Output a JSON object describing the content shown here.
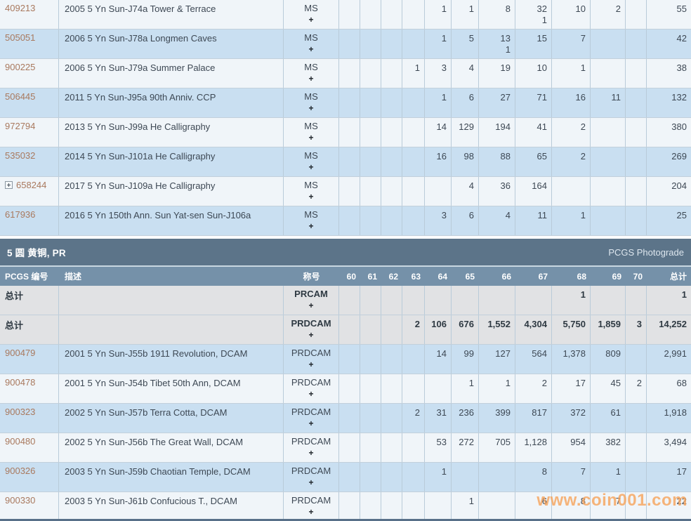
{
  "table": {
    "headers": {
      "pcgs": "PCGS 编号",
      "desc": "描述",
      "desig": "称号",
      "grades": [
        "60",
        "61",
        "62",
        "63",
        "64",
        "65",
        "66",
        "67",
        "68",
        "69",
        "70"
      ],
      "total": "总计"
    },
    "section_ms": {
      "rows": [
        {
          "pcgs": "409213",
          "desc": "2005 5 Yn Sun-J74a Tower & Terrace",
          "desig": "MS",
          "desig2": "+",
          "bg": "white",
          "v": {
            "64": "1",
            "65": "1",
            "66": "8",
            "67": "32",
            "68": "10",
            "69": "2"
          },
          "p": {
            "67": "1"
          },
          "total": "55"
        },
        {
          "pcgs": "505051",
          "desc": "2006 5 Yn Sun-J78a Longmen Caves",
          "desig": "MS",
          "desig2": "+",
          "bg": "blue",
          "v": {
            "64": "1",
            "65": "5",
            "66": "13",
            "67": "15",
            "68": "7"
          },
          "p": {
            "66": "1"
          },
          "total": "42"
        },
        {
          "pcgs": "900225",
          "desc": "2006 5 Yn Sun-J79a Summer Palace",
          "desig": "MS",
          "desig2": "+",
          "bg": "white",
          "v": {
            "63": "1",
            "64": "3",
            "65": "4",
            "66": "19",
            "67": "10",
            "68": "1"
          },
          "p": {},
          "total": "38"
        },
        {
          "pcgs": "506445",
          "desc": "2011 5 Yn Sun-J95a 90th Anniv. CCP",
          "desig": "MS",
          "desig2": "+",
          "bg": "blue",
          "v": {
            "64": "1",
            "65": "6",
            "66": "27",
            "67": "71",
            "68": "16",
            "69": "11"
          },
          "p": {},
          "total": "132"
        },
        {
          "pcgs": "972794",
          "desc": "2013 5 Yn Sun-J99a He Calligraphy",
          "desig": "MS",
          "desig2": "+",
          "bg": "white",
          "v": {
            "64": "14",
            "65": "129",
            "66": "194",
            "67": "41",
            "68": "2"
          },
          "p": {},
          "total": "380"
        },
        {
          "pcgs": "535032",
          "desc": "2014 5 Yn Sun-J101a He Calligraphy",
          "desig": "MS",
          "desig2": "+",
          "bg": "blue",
          "v": {
            "64": "16",
            "65": "98",
            "66": "88",
            "67": "65",
            "68": "2"
          },
          "p": {},
          "total": "269"
        },
        {
          "pcgs": "658244",
          "expand": true,
          "desc": "2017 5 Yn Sun-J109a He Calligraphy",
          "desig": "MS",
          "desig2": "+",
          "bg": "white",
          "v": {
            "65": "4",
            "66": "36",
            "67": "164"
          },
          "p": {},
          "total": "204"
        },
        {
          "pcgs": "617936",
          "desc": "2016 5 Yn 150th Ann. Sun Yat-sen Sun-J106a",
          "desig": "MS",
          "desig2": "+",
          "bg": "blue",
          "v": {
            "64": "3",
            "65": "6",
            "66": "4",
            "67": "11",
            "68": "1"
          },
          "p": {},
          "total": "25"
        }
      ]
    },
    "section_pr": {
      "title": "5 圆 黄铜, PR",
      "photograde_link": "PCGS Photograde",
      "rows": [
        {
          "pcgs": "总计",
          "is_total": true,
          "desc": "",
          "desig": "PRCAM",
          "desig2": "+",
          "bg": "gray",
          "v": {
            "68": "1"
          },
          "p": {},
          "total": "1"
        },
        {
          "pcgs": "总计",
          "is_total": true,
          "desc": "",
          "desig": "PRDCAM",
          "desig2": "+",
          "bg": "gray",
          "v": {
            "63": "2",
            "64": "106",
            "65": "676",
            "66": "1,552",
            "67": "4,304",
            "68": "5,750",
            "69": "1,859",
            "70": "3"
          },
          "p": {},
          "total": "14,252"
        },
        {
          "pcgs": "900479",
          "desc": "2001 5 Yn Sun-J55b 1911 Revolution, DCAM",
          "desig": "PRDCAM",
          "desig2": "+",
          "bg": "blue",
          "v": {
            "64": "14",
            "65": "99",
            "66": "127",
            "67": "564",
            "68": "1,378",
            "69": "809"
          },
          "p": {},
          "total": "2,991"
        },
        {
          "pcgs": "900478",
          "desc": "2001 5 Yn Sun-J54b Tibet 50th Ann, DCAM",
          "desig": "PRDCAM",
          "desig2": "+",
          "bg": "white",
          "v": {
            "65": "1",
            "66": "1",
            "67": "2",
            "68": "17",
            "69": "45",
            "70": "2"
          },
          "p": {},
          "total": "68"
        },
        {
          "pcgs": "900323",
          "desc": "2002 5 Yn Sun-J57b Terra Cotta, DCAM",
          "desig": "PRDCAM",
          "desig2": "+",
          "bg": "blue",
          "v": {
            "63": "2",
            "64": "31",
            "65": "236",
            "66": "399",
            "67": "817",
            "68": "372",
            "69": "61"
          },
          "p": {},
          "total": "1,918"
        },
        {
          "pcgs": "900480",
          "desc": "2002 5 Yn Sun-J56b The Great Wall, DCAM",
          "desig": "PRDCAM",
          "desig2": "+",
          "bg": "white",
          "v": {
            "64": "53",
            "65": "272",
            "66": "705",
            "67": "1,128",
            "68": "954",
            "69": "382"
          },
          "p": {},
          "total": "3,494"
        },
        {
          "pcgs": "900326",
          "desc": "2003 5 Yn Sun-J59b Chaotian Temple, DCAM",
          "desig": "PRDCAM",
          "desig2": "+",
          "bg": "blue",
          "v": {
            "64": "1",
            "67": "8",
            "68": "7",
            "69": "1"
          },
          "p": {},
          "total": "17"
        },
        {
          "pcgs": "900330",
          "desc": "2003 5 Yn Sun-J61b Confucious T., DCAM",
          "desig": "PRDCAM",
          "desig2": "+",
          "bg": "white",
          "v": {
            "65": "1",
            "67": "6",
            "68": "8",
            "69": "7"
          },
          "p": {},
          "total": "22"
        }
      ]
    }
  },
  "watermark": "www.coin001.com"
}
